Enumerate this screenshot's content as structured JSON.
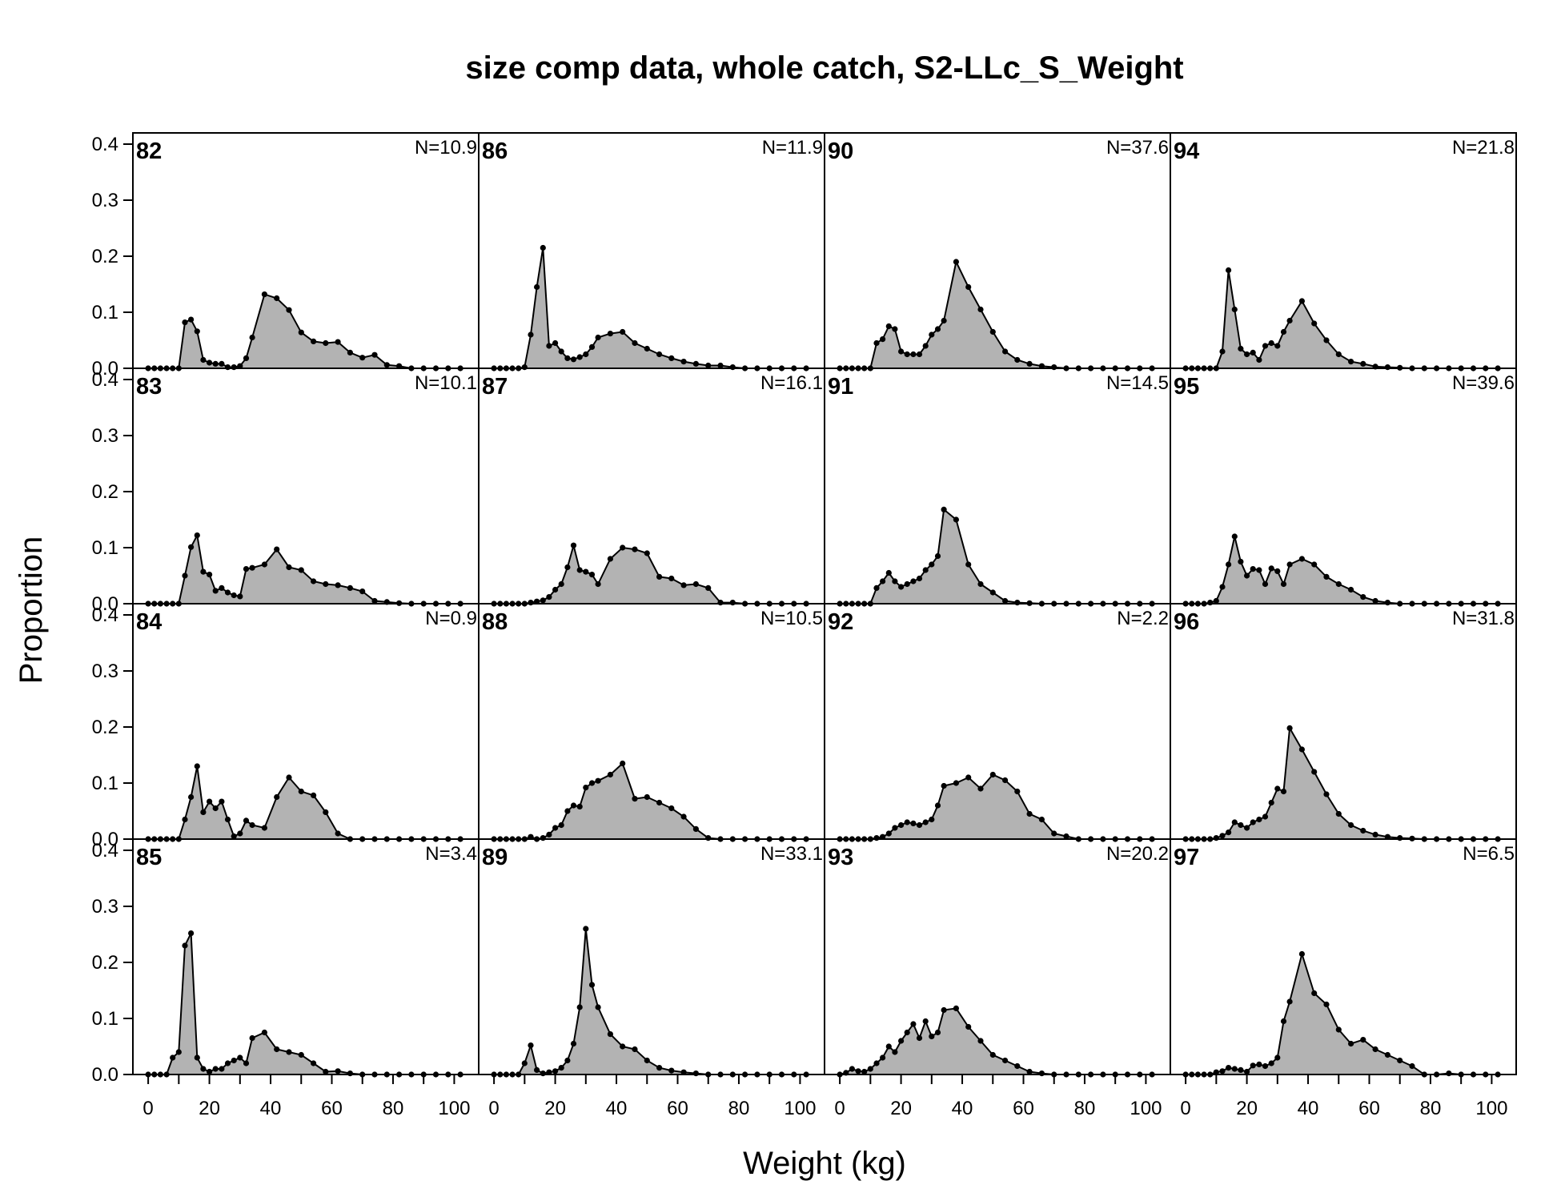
{
  "chart_data": {
    "type": "area",
    "title": "size comp data, whole catch, S2-LLc_S_Weight",
    "xlabel": "Weight (kg)",
    "ylabel": "Proportion",
    "xlim": [
      -5,
      108
    ],
    "ylim": [
      0,
      0.42
    ],
    "x_ticks": [
      "0",
      "20",
      "40",
      "60",
      "80",
      "100"
    ],
    "y_ticks": [
      "0.0",
      "0.1",
      "0.2",
      "0.3",
      "0.4"
    ],
    "layout": "4 rows x 4 columns, panels ordered down columns",
    "fill_color": "#b3b3b3",
    "line_color": "#000000",
    "panels": [
      {
        "label": "82",
        "n": "N=10.9",
        "x": [
          0,
          2,
          4,
          6,
          8,
          10,
          12,
          14,
          16,
          18,
          20,
          22,
          24,
          26,
          28,
          30,
          32,
          34,
          38,
          42,
          46,
          50,
          54,
          58,
          62,
          66,
          70,
          74,
          78,
          82,
          86,
          90,
          94,
          98,
          102
        ],
        "y": [
          0,
          0,
          0,
          0,
          0,
          0,
          0.082,
          0.087,
          0.066,
          0.015,
          0.01,
          0.008,
          0.008,
          0.002,
          0.002,
          0.004,
          0.018,
          0.055,
          0.132,
          0.125,
          0.104,
          0.064,
          0.048,
          0.045,
          0.047,
          0.028,
          0.019,
          0.024,
          0.006,
          0.004,
          0,
          0,
          0,
          0,
          0
        ]
      },
      {
        "label": "83",
        "n": "N=10.1",
        "x": [
          0,
          2,
          4,
          6,
          8,
          10,
          12,
          14,
          16,
          18,
          20,
          22,
          24,
          26,
          28,
          30,
          32,
          34,
          38,
          42,
          46,
          50,
          54,
          58,
          62,
          66,
          70,
          74,
          78,
          82,
          86,
          90,
          94,
          98,
          102
        ],
        "y": [
          0,
          0,
          0,
          0,
          0,
          0,
          0.05,
          0.101,
          0.122,
          0.057,
          0.052,
          0.023,
          0.028,
          0.02,
          0.015,
          0.013,
          0.062,
          0.064,
          0.07,
          0.097,
          0.065,
          0.06,
          0.04,
          0.035,
          0.033,
          0.028,
          0.022,
          0.005,
          0.003,
          0.001,
          0,
          0,
          0,
          0,
          0
        ]
      },
      {
        "label": "84",
        "n": "N=0.9",
        "x": [
          0,
          2,
          4,
          6,
          8,
          10,
          12,
          14,
          16,
          18,
          20,
          22,
          24,
          26,
          28,
          30,
          32,
          34,
          38,
          42,
          46,
          50,
          54,
          58,
          62,
          66,
          70,
          74,
          78,
          82,
          86,
          90,
          94,
          98,
          102
        ],
        "y": [
          0,
          0,
          0,
          0,
          0,
          0,
          0.035,
          0.075,
          0.13,
          0.048,
          0.067,
          0.055,
          0.067,
          0.035,
          0.005,
          0.01,
          0.033,
          0.025,
          0.02,
          0.075,
          0.11,
          0.085,
          0.078,
          0.048,
          0.01,
          0,
          0,
          0,
          0,
          0,
          0,
          0,
          0,
          0,
          0
        ]
      },
      {
        "label": "85",
        "n": "N=3.4",
        "x": [
          0,
          2,
          4,
          6,
          8,
          10,
          12,
          14,
          16,
          18,
          20,
          22,
          24,
          26,
          28,
          30,
          32,
          34,
          38,
          42,
          46,
          50,
          54,
          58,
          62,
          66,
          70,
          74,
          78,
          82,
          86,
          90,
          94,
          98,
          102
        ],
        "y": [
          0,
          0,
          0,
          0,
          0.03,
          0.04,
          0.23,
          0.252,
          0.03,
          0.01,
          0.005,
          0.01,
          0.01,
          0.02,
          0.025,
          0.03,
          0.02,
          0.065,
          0.075,
          0.045,
          0.04,
          0.035,
          0.02,
          0.005,
          0.006,
          0.002,
          0,
          0,
          0,
          0,
          0,
          0,
          0,
          0,
          0
        ]
      },
      {
        "label": "86",
        "n": "N=11.9",
        "x": [
          0,
          2,
          4,
          6,
          8,
          10,
          12,
          14,
          16,
          18,
          20,
          22,
          24,
          26,
          28,
          30,
          32,
          34,
          38,
          42,
          46,
          50,
          54,
          58,
          62,
          66,
          70,
          74,
          78,
          82,
          86,
          90,
          94,
          98,
          102
        ],
        "y": [
          0,
          0,
          0,
          0,
          0,
          0.002,
          0.06,
          0.145,
          0.215,
          0.04,
          0.045,
          0.03,
          0.018,
          0.016,
          0.02,
          0.025,
          0.038,
          0.055,
          0.062,
          0.065,
          0.045,
          0.035,
          0.025,
          0.018,
          0.012,
          0.008,
          0.005,
          0.005,
          0.002,
          0,
          0,
          0,
          0,
          0,
          0
        ]
      },
      {
        "label": "87",
        "n": "N=16.1",
        "x": [
          0,
          2,
          4,
          6,
          8,
          10,
          12,
          14,
          16,
          18,
          20,
          22,
          24,
          26,
          28,
          30,
          32,
          34,
          38,
          42,
          46,
          50,
          54,
          58,
          62,
          66,
          70,
          74,
          78,
          82,
          86,
          90,
          94,
          98,
          102
        ],
        "y": [
          0,
          0,
          0,
          0,
          0,
          0,
          0.002,
          0.004,
          0.006,
          0.012,
          0.025,
          0.035,
          0.065,
          0.104,
          0.06,
          0.057,
          0.052,
          0.035,
          0.08,
          0.1,
          0.097,
          0.09,
          0.048,
          0.045,
          0.033,
          0.035,
          0.028,
          0.002,
          0.002,
          0,
          0,
          0,
          0,
          0,
          0
        ]
      },
      {
        "label": "88",
        "n": "N=10.5",
        "x": [
          0,
          2,
          4,
          6,
          8,
          10,
          12,
          14,
          16,
          18,
          20,
          22,
          24,
          26,
          28,
          30,
          32,
          34,
          38,
          42,
          46,
          50,
          54,
          58,
          62,
          66,
          70,
          74,
          78,
          82,
          86,
          90,
          94,
          98,
          102
        ],
        "y": [
          0,
          0,
          0,
          0,
          0,
          0,
          0.004,
          0,
          0.002,
          0.008,
          0.02,
          0.025,
          0.05,
          0.06,
          0.058,
          0.092,
          0.1,
          0.104,
          0.115,
          0.135,
          0.072,
          0.075,
          0.065,
          0.055,
          0.04,
          0.018,
          0.002,
          0,
          0,
          0,
          0,
          0,
          0,
          0,
          0
        ]
      },
      {
        "label": "89",
        "n": "N=33.1",
        "x": [
          0,
          2,
          4,
          6,
          8,
          10,
          12,
          14,
          16,
          18,
          20,
          22,
          24,
          26,
          28,
          30,
          32,
          34,
          38,
          42,
          46,
          50,
          54,
          58,
          62,
          66,
          70,
          74,
          78,
          82,
          86,
          90,
          94,
          98,
          102
        ],
        "y": [
          0,
          0,
          0,
          0,
          0,
          0.02,
          0.052,
          0.008,
          0.002,
          0.004,
          0.006,
          0.012,
          0.025,
          0.055,
          0.12,
          0.26,
          0.16,
          0.12,
          0.072,
          0.05,
          0.045,
          0.025,
          0.012,
          0.007,
          0.004,
          0.002,
          0,
          0,
          0,
          0,
          0,
          0,
          0,
          0,
          0
        ]
      },
      {
        "label": "90",
        "n": "N=37.6",
        "x": [
          0,
          2,
          4,
          6,
          8,
          10,
          12,
          14,
          16,
          18,
          20,
          22,
          24,
          26,
          28,
          30,
          32,
          34,
          38,
          42,
          46,
          50,
          54,
          58,
          62,
          66,
          70,
          74,
          78,
          82,
          86,
          90,
          94,
          98,
          102
        ],
        "y": [
          0,
          0,
          0,
          0,
          0,
          0,
          0.045,
          0.052,
          0.075,
          0.07,
          0.03,
          0.025,
          0.025,
          0.025,
          0.04,
          0.06,
          0.07,
          0.085,
          0.19,
          0.145,
          0.105,
          0.065,
          0.03,
          0.015,
          0.008,
          0.004,
          0.002,
          0,
          0,
          0,
          0,
          0,
          0,
          0,
          0
        ]
      },
      {
        "label": "91",
        "n": "N=14.5",
        "x": [
          0,
          2,
          4,
          6,
          8,
          10,
          12,
          14,
          16,
          18,
          20,
          22,
          24,
          26,
          28,
          30,
          32,
          34,
          38,
          42,
          46,
          50,
          54,
          58,
          62,
          66,
          70,
          74,
          78,
          82,
          86,
          90,
          94,
          98,
          102
        ],
        "y": [
          0,
          0,
          0,
          0,
          0,
          0,
          0.028,
          0.04,
          0.055,
          0.04,
          0.03,
          0.035,
          0.04,
          0.045,
          0.06,
          0.07,
          0.085,
          0.168,
          0.15,
          0.07,
          0.035,
          0.02,
          0.005,
          0.002,
          0.001,
          0,
          0,
          0,
          0,
          0,
          0,
          0,
          0,
          0,
          0
        ]
      },
      {
        "label": "92",
        "n": "N=2.2",
        "x": [
          0,
          2,
          4,
          6,
          8,
          10,
          12,
          14,
          16,
          18,
          20,
          22,
          24,
          26,
          28,
          30,
          32,
          34,
          38,
          42,
          46,
          50,
          54,
          58,
          62,
          66,
          70,
          74,
          78,
          82,
          86,
          90,
          94,
          98,
          102
        ],
        "y": [
          0,
          0,
          0,
          0,
          0,
          0,
          0.002,
          0.004,
          0.01,
          0.02,
          0.025,
          0.03,
          0.028,
          0.025,
          0.03,
          0.035,
          0.06,
          0.095,
          0.1,
          0.11,
          0.09,
          0.115,
          0.105,
          0.085,
          0.045,
          0.035,
          0.01,
          0.005,
          0,
          0,
          0,
          0,
          0,
          0,
          0
        ]
      },
      {
        "label": "93",
        "n": "N=20.2",
        "x": [
          0,
          2,
          4,
          6,
          8,
          10,
          12,
          14,
          16,
          18,
          20,
          22,
          24,
          26,
          28,
          30,
          32,
          34,
          38,
          42,
          46,
          50,
          54,
          58,
          62,
          66,
          70,
          74,
          78,
          82,
          86,
          90,
          94,
          98,
          102
        ],
        "y": [
          0,
          0.003,
          0.01,
          0.006,
          0.005,
          0.01,
          0.02,
          0.03,
          0.05,
          0.04,
          0.06,
          0.075,
          0.09,
          0.065,
          0.095,
          0.068,
          0.075,
          0.115,
          0.118,
          0.085,
          0.06,
          0.035,
          0.025,
          0.015,
          0.005,
          0.002,
          0,
          0,
          0,
          0,
          0,
          0,
          0,
          0,
          0
        ]
      },
      {
        "label": "94",
        "n": "N=21.8",
        "x": [
          0,
          2,
          4,
          6,
          8,
          10,
          12,
          14,
          16,
          18,
          20,
          22,
          24,
          26,
          28,
          30,
          32,
          34,
          38,
          42,
          46,
          50,
          54,
          58,
          62,
          66,
          70,
          74,
          78,
          82,
          86,
          90,
          94,
          98,
          102
        ],
        "y": [
          0,
          0,
          0,
          0,
          0,
          0,
          0.03,
          0.175,
          0.105,
          0.035,
          0.025,
          0.028,
          0.015,
          0.04,
          0.045,
          0.04,
          0.065,
          0.085,
          0.12,
          0.08,
          0.05,
          0.025,
          0.012,
          0.008,
          0.003,
          0.002,
          0.001,
          0,
          0,
          0,
          0,
          0,
          0,
          0,
          0
        ]
      },
      {
        "label": "95",
        "n": "N=39.6",
        "x": [
          0,
          2,
          4,
          6,
          8,
          10,
          12,
          14,
          16,
          18,
          20,
          22,
          24,
          26,
          28,
          30,
          32,
          34,
          38,
          42,
          46,
          50,
          54,
          58,
          62,
          66,
          70,
          74,
          78,
          82,
          86,
          90,
          94,
          98,
          102
        ],
        "y": [
          0,
          0,
          0,
          0,
          0.002,
          0.005,
          0.03,
          0.07,
          0.12,
          0.075,
          0.05,
          0.062,
          0.06,
          0.035,
          0.063,
          0.058,
          0.035,
          0.07,
          0.08,
          0.07,
          0.048,
          0.035,
          0.025,
          0.012,
          0.005,
          0.002,
          0,
          0,
          0,
          0,
          0,
          0,
          0,
          0,
          0
        ]
      },
      {
        "label": "96",
        "n": "N=31.8",
        "x": [
          0,
          2,
          4,
          6,
          8,
          10,
          12,
          14,
          16,
          18,
          20,
          22,
          24,
          26,
          28,
          30,
          32,
          34,
          38,
          42,
          46,
          50,
          54,
          58,
          62,
          66,
          70,
          74,
          78,
          82,
          86,
          90,
          94,
          98,
          102
        ],
        "y": [
          0,
          0,
          0,
          0,
          0,
          0.002,
          0.006,
          0.012,
          0.03,
          0.025,
          0.02,
          0.03,
          0.035,
          0.04,
          0.065,
          0.09,
          0.085,
          0.198,
          0.16,
          0.12,
          0.08,
          0.045,
          0.025,
          0.015,
          0.008,
          0.004,
          0.002,
          0.001,
          0,
          0,
          0,
          0,
          0,
          0,
          0
        ]
      },
      {
        "label": "97",
        "n": "N=6.5",
        "x": [
          0,
          2,
          4,
          6,
          8,
          10,
          12,
          14,
          16,
          18,
          20,
          22,
          24,
          26,
          28,
          30,
          32,
          34,
          38,
          42,
          46,
          50,
          54,
          58,
          62,
          66,
          70,
          74,
          78,
          82,
          86,
          90,
          94,
          98,
          102
        ],
        "y": [
          0,
          0,
          0,
          0,
          0,
          0.004,
          0.006,
          0.012,
          0.01,
          0.008,
          0.005,
          0.016,
          0.018,
          0.015,
          0.02,
          0.03,
          0.095,
          0.13,
          0.215,
          0.145,
          0.125,
          0.08,
          0.055,
          0.062,
          0.045,
          0.035,
          0.025,
          0.015,
          0,
          0,
          0.002,
          0,
          0,
          0,
          0
        ]
      }
    ]
  }
}
